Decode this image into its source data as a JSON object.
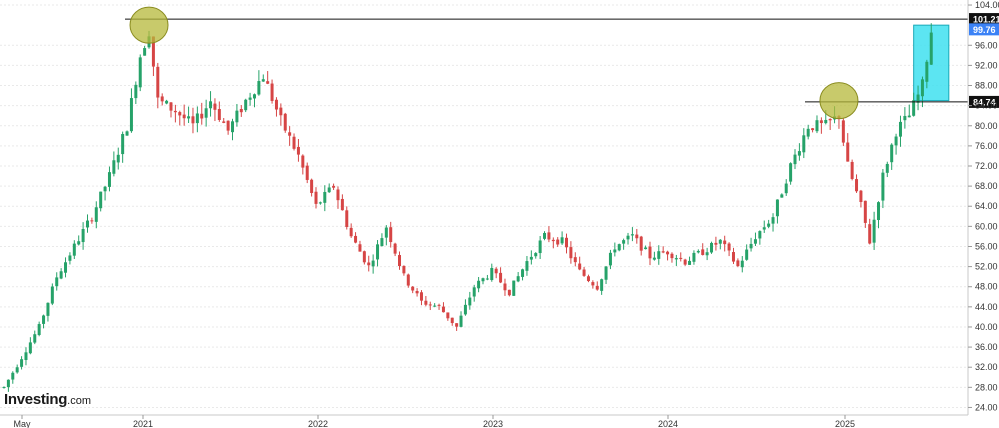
{
  "chart_data": {
    "type": "candlestick",
    "title": "",
    "xlabel": "",
    "ylabel": "",
    "ylim": [
      22.5,
      105
    ],
    "yticks": [
      24,
      28,
      32,
      36,
      40,
      44,
      48,
      52,
      56,
      60,
      64,
      68,
      72,
      76,
      80,
      84,
      88,
      92,
      96,
      104
    ],
    "ytick_labels": [
      "24.00",
      "28.00",
      "32.00",
      "36.00",
      "40.00",
      "44.00",
      "48.00",
      "52.00",
      "56.00",
      "60.00",
      "64.00",
      "68.00",
      "72.00",
      "76.00",
      "80.00",
      "84.00",
      "88.00",
      "92.00",
      "96.00",
      "104.00"
    ],
    "xtick_labels": [
      {
        "label": "May",
        "date": "2020-05"
      },
      {
        "label": "2021",
        "date": "2021-01"
      },
      {
        "label": "2022",
        "date": "2022-01"
      },
      {
        "label": "2023",
        "date": "2023-01"
      },
      {
        "label": "2024",
        "date": "2024-01"
      },
      {
        "label": "2025",
        "date": "2025-01"
      }
    ],
    "grid": true,
    "up_color": "#26a269",
    "down_color": "#d64545",
    "path_points": [
      {
        "t": 0,
        "price": 28
      },
      {
        "t": 4,
        "price": 34
      },
      {
        "t": 8,
        "price": 40
      },
      {
        "t": 12,
        "price": 50
      },
      {
        "t": 16,
        "price": 56
      },
      {
        "t": 20,
        "price": 62
      },
      {
        "t": 24,
        "price": 70
      },
      {
        "t": 28,
        "price": 80
      },
      {
        "t": 31,
        "price": 94
      },
      {
        "t": 33,
        "price": 99
      },
      {
        "t": 35,
        "price": 85
      },
      {
        "t": 39,
        "price": 83
      },
      {
        "t": 43,
        "price": 80
      },
      {
        "t": 47,
        "price": 85
      },
      {
        "t": 51,
        "price": 79
      },
      {
        "t": 55,
        "price": 85
      },
      {
        "t": 59,
        "price": 90
      },
      {
        "t": 63,
        "price": 81
      },
      {
        "t": 67,
        "price": 74
      },
      {
        "t": 71,
        "price": 64
      },
      {
        "t": 75,
        "price": 68
      },
      {
        "t": 79,
        "price": 58
      },
      {
        "t": 83,
        "price": 52
      },
      {
        "t": 87,
        "price": 60
      },
      {
        "t": 91,
        "price": 50
      },
      {
        "t": 95,
        "price": 45
      },
      {
        "t": 99,
        "price": 44
      },
      {
        "t": 103,
        "price": 40
      },
      {
        "t": 107,
        "price": 48
      },
      {
        "t": 111,
        "price": 51
      },
      {
        "t": 115,
        "price": 47
      },
      {
        "t": 119,
        "price": 53
      },
      {
        "t": 123,
        "price": 58
      },
      {
        "t": 127,
        "price": 57
      },
      {
        "t": 131,
        "price": 51
      },
      {
        "t": 135,
        "price": 48
      },
      {
        "t": 139,
        "price": 56
      },
      {
        "t": 143,
        "price": 58
      },
      {
        "t": 147,
        "price": 54
      },
      {
        "t": 151,
        "price": 55
      },
      {
        "t": 155,
        "price": 53
      },
      {
        "t": 159,
        "price": 55
      },
      {
        "t": 163,
        "price": 57
      },
      {
        "t": 167,
        "price": 52
      },
      {
        "t": 171,
        "price": 58
      },
      {
        "t": 175,
        "price": 62
      },
      {
        "t": 179,
        "price": 72
      },
      {
        "t": 183,
        "price": 80
      },
      {
        "t": 187,
        "price": 80
      },
      {
        "t": 190,
        "price": 82
      },
      {
        "t": 192,
        "price": 72
      },
      {
        "t": 195,
        "price": 64
      },
      {
        "t": 197,
        "price": 57
      },
      {
        "t": 200,
        "price": 70
      },
      {
        "t": 203,
        "price": 79
      },
      {
        "t": 206,
        "price": 82
      },
      {
        "t": 209,
        "price": 88
      },
      {
        "t": 211,
        "price": 99
      }
    ],
    "horizontal_levels": [
      {
        "value": 101.21,
        "label": "101.21",
        "color": "#111111",
        "text_color": "#ffffff"
      },
      {
        "value": 84.74,
        "label": "84.74",
        "color": "#111111",
        "text_color": "#ffffff"
      }
    ],
    "current_price": {
      "value": 99.76,
      "label": "99.76",
      "color": "#3b82f6",
      "text_color": "#ffffff"
    },
    "annotations": [
      {
        "kind": "ellipse",
        "name": "2021-peak-highlight",
        "t": 33,
        "price": 100,
        "color": "#b5b83a"
      },
      {
        "kind": "ellipse",
        "name": "2025-peak-highlight",
        "t": 190,
        "price": 85,
        "color": "#b5b83a"
      },
      {
        "kind": "rect",
        "name": "recent-rally-box",
        "t0": 207,
        "t1": 215,
        "price0": 85,
        "price1": 100,
        "color": "#3fe0f0"
      }
    ]
  },
  "branding": {
    "logo_text": "Investing",
    "logo_suffix": ".com"
  }
}
